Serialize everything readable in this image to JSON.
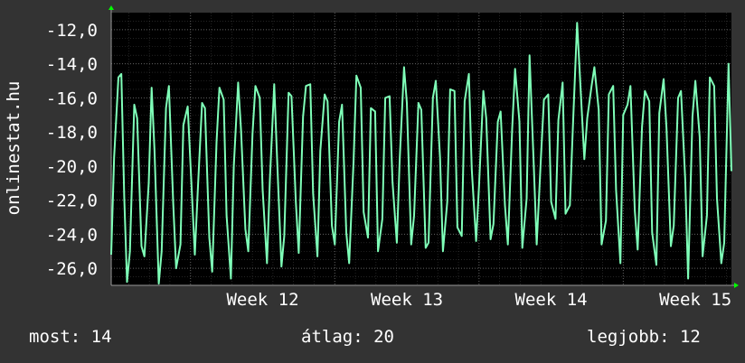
{
  "colors": {
    "background": "#333333",
    "plot_background": "#000000",
    "grid": "#6a6a6a",
    "series": "#7fffb8",
    "axis_arrow": "#00ff00",
    "text": "#ffffff"
  },
  "side_label": "onlinestat.hu",
  "footer": {
    "current": "most: 14",
    "average": "átlag: 20",
    "best": "legjobb: 12"
  },
  "chart_data": {
    "type": "line",
    "xlabel": "",
    "ylabel": "",
    "ylim": [
      -27,
      -11
    ],
    "yticks": [
      -12,
      -14,
      -16,
      -18,
      -20,
      -22,
      -24,
      -26
    ],
    "ytick_labels": [
      "-12,0",
      "-14,0",
      "-16,0",
      "-18,0",
      "-20,0",
      "-22,0",
      "-24,0",
      "-26,0"
    ],
    "x_tick_labels": [
      "Week 12",
      "Week 13",
      "Week 14",
      "Week 15"
    ],
    "x_tick_week_index": [
      12,
      13,
      14,
      15
    ],
    "x_range_weeks": [
      11.45,
      15.75
    ],
    "grid": true,
    "legend": "none",
    "series": [
      {
        "week": [
          11.45,
          11.47,
          11.5,
          11.52,
          11.54,
          11.56,
          11.58,
          11.61,
          11.63,
          11.66,
          11.68,
          11.71,
          11.73,
          11.75,
          11.78,
          11.8,
          11.83,
          11.85,
          11.88,
          11.9,
          11.93,
          11.95,
          11.98,
          12.0,
          12.03,
          12.05,
          12.08,
          12.1,
          12.13,
          12.15,
          12.18,
          12.2,
          12.23,
          12.25,
          12.28,
          12.3,
          12.33,
          12.35,
          12.38,
          12.4,
          12.43,
          12.45,
          12.48,
          12.5,
          12.53,
          12.55,
          12.58,
          12.6,
          12.63,
          12.65,
          12.68,
          12.7,
          12.73,
          12.75,
          12.78,
          12.8,
          12.83,
          12.85,
          12.88,
          12.9,
          12.93,
          12.95,
          12.98,
          13.0,
          13.03,
          13.05,
          13.08,
          13.1,
          13.13,
          13.15,
          13.18,
          13.2,
          13.23,
          13.25,
          13.28,
          13.3,
          13.33,
          13.35,
          13.38,
          13.4,
          13.43,
          13.45,
          13.48,
          13.5,
          13.53,
          13.55,
          13.58,
          13.6,
          13.63,
          13.65,
          13.68,
          13.7,
          13.73,
          13.75,
          13.78,
          13.8,
          13.83,
          13.85,
          13.88,
          13.9,
          13.93,
          13.95,
          13.98,
          14.0,
          14.03,
          14.05,
          14.08,
          14.1,
          14.13,
          14.15,
          14.18,
          14.2,
          14.23,
          14.25,
          14.28,
          14.3,
          14.33,
          14.35,
          14.38,
          14.4,
          14.43,
          14.45,
          14.48,
          14.5,
          14.53,
          14.55,
          14.58,
          14.6,
          14.63,
          14.65,
          14.68,
          14.7,
          14.73,
          14.75,
          14.78,
          14.8,
          14.83,
          14.85,
          14.88,
          14.9,
          14.93,
          14.95,
          14.98,
          15.0,
          15.03,
          15.05,
          15.08,
          15.1,
          15.13,
          15.15,
          15.18,
          15.2,
          15.23,
          15.25,
          15.28,
          15.3,
          15.33,
          15.35,
          15.38,
          15.4,
          15.43,
          15.45,
          15.48,
          15.5,
          15.53,
          15.55,
          15.58,
          15.6,
          15.63,
          15.65,
          15.68,
          15.7,
          15.73,
          15.75
        ],
        "values": [
          -25.2,
          -19.5,
          -14.8,
          -14.6,
          -21.8,
          -26.8,
          -25.0,
          -16.4,
          -17.2,
          -24.7,
          -25.3,
          -21.0,
          -15.4,
          -19.1,
          -26.9,
          -25.0,
          -16.6,
          -15.3,
          -22.2,
          -26.0,
          -24.6,
          -17.6,
          -16.5,
          -19.9,
          -25.2,
          -21.5,
          -16.3,
          -16.6,
          -24.2,
          -26.2,
          -18.6,
          -15.4,
          -16.1,
          -22.9,
          -26.6,
          -20.0,
          -15.1,
          -17.9,
          -23.7,
          -25.0,
          -18.1,
          -15.3,
          -16.0,
          -21.4,
          -25.7,
          -20.8,
          -15.2,
          -19.6,
          -25.9,
          -24.1,
          -15.7,
          -15.9,
          -22.1,
          -25.1,
          -17.1,
          -15.3,
          -15.2,
          -21.6,
          -25.3,
          -19.1,
          -15.8,
          -16.2,
          -23.5,
          -24.6,
          -17.4,
          -16.4,
          -23.9,
          -25.7,
          -19.8,
          -14.7,
          -15.4,
          -22.7,
          -24.2,
          -16.6,
          -16.8,
          -25.0,
          -23.1,
          -16.0,
          -15.9,
          -20.9,
          -24.5,
          -19.6,
          -14.2,
          -16.3,
          -24.6,
          -22.9,
          -16.3,
          -16.7,
          -24.8,
          -24.5,
          -16.0,
          -15.0,
          -19.5,
          -25.0,
          -22.1,
          -15.5,
          -15.6,
          -23.6,
          -24.1,
          -16.2,
          -14.6,
          -20.2,
          -24.4,
          -21.2,
          -15.6,
          -17.2,
          -24.3,
          -23.4,
          -17.4,
          -16.8,
          -22.3,
          -24.6,
          -17.8,
          -14.3,
          -17.4,
          -24.8,
          -21.9,
          -13.5,
          -20.0,
          -24.6,
          -19.4,
          -16.1,
          -15.8,
          -22.1,
          -23.1,
          -17.3,
          -15.1,
          -22.8,
          -22.3,
          -17.9,
          -11.6,
          -14.8,
          -19.6,
          -17.2,
          -15.3,
          -14.2,
          -16.7,
          -24.6,
          -23.2,
          -15.8,
          -15.3,
          -21.4,
          -25.7,
          -17.0,
          -16.4,
          -15.3,
          -22.6,
          -24.9,
          -17.7,
          -15.6,
          -16.2,
          -23.9,
          -25.8,
          -16.9,
          -14.9,
          -17.8,
          -24.7,
          -23.5,
          -16.0,
          -15.6,
          -20.8,
          -26.6,
          -17.1,
          -15.0,
          -18.3,
          -25.3,
          -22.9,
          -14.8,
          -15.3,
          -21.9,
          -25.7,
          -24.5,
          -14.0,
          -20.3
        ]
      }
    ]
  }
}
